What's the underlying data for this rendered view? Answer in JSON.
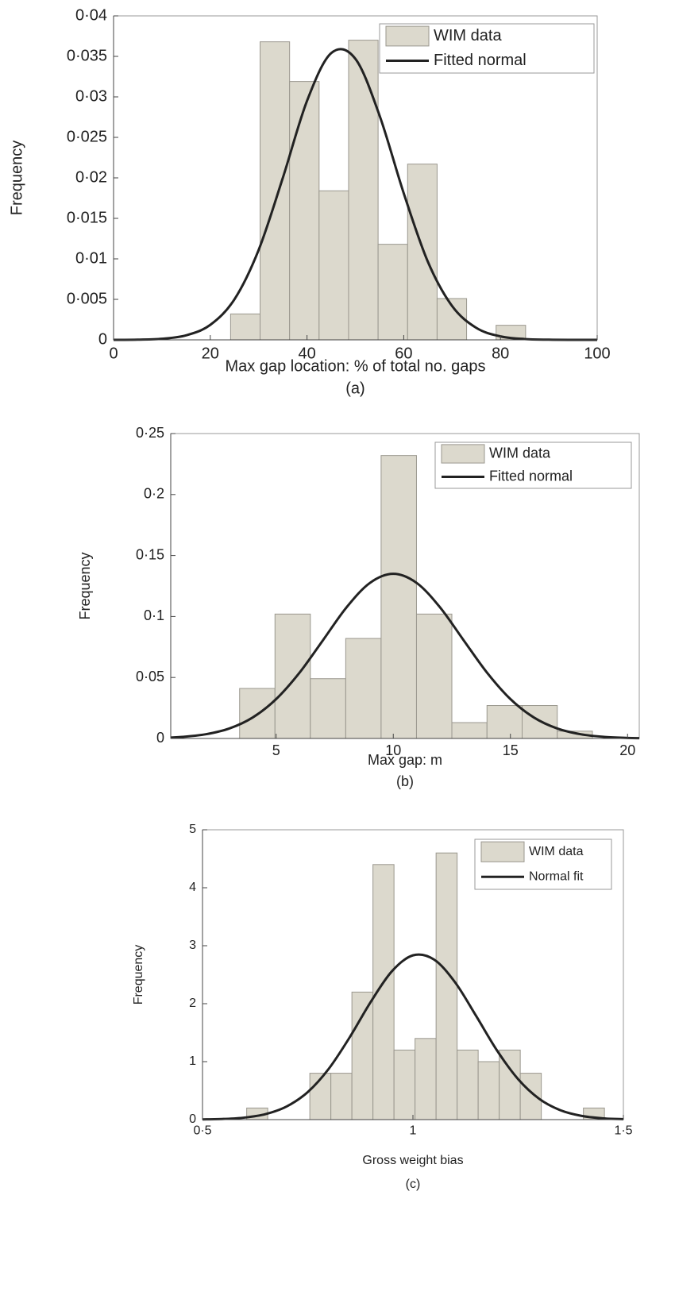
{
  "chart_data": [
    {
      "type": "histogram",
      "xlabel": "Max gap location: % of total no. gaps",
      "ylabel": "Frequency",
      "caption": "(a)",
      "bins": [
        24.2,
        30.3,
        36.4,
        42.5,
        48.6,
        54.7,
        60.8,
        66.9,
        73.0,
        79.1,
        85.2
      ],
      "series": [
        {
          "name": "WIM data",
          "color": "#dcd9cd",
          "values": [
            0.0032,
            0.0368,
            0.0319,
            0.0184,
            0.037,
            0.0118,
            0.0217,
            0.0051,
            0,
            0.0018
          ]
        },
        {
          "name": "Fitted normal",
          "color": "#222222",
          "type": "line",
          "x": [
            0,
            5,
            10,
            15,
            20,
            25,
            30,
            35,
            40,
            45,
            50,
            55,
            60,
            65,
            70,
            75,
            80,
            85,
            90,
            95,
            100
          ],
          "values": [
            0,
            3e-05,
            0.00014,
            0.00056,
            0.00185,
            0.00501,
            0.0111,
            0.02,
            0.0295,
            0.0354,
            0.0347,
            0.0277,
            0.0181,
            0.00963,
            0.00418,
            0.00148,
            0.00043,
            0.0001,
            2e-05,
            0,
            0
          ]
        }
      ],
      "xlim": [
        0,
        100
      ],
      "ylim": [
        0,
        0.04
      ],
      "xticks": [
        0,
        20,
        40,
        60,
        80,
        100
      ],
      "yticks": [
        0,
        {
          "value": 0.005,
          "label": "0·005"
        },
        {
          "value": 0.01,
          "label": "0·01"
        },
        {
          "value": 0.015,
          "label": "0·015"
        },
        {
          "value": 0.02,
          "label": "0·02"
        },
        {
          "value": 0.025,
          "label": "0·025"
        },
        {
          "value": 0.03,
          "label": "0·03"
        },
        {
          "value": 0.035,
          "label": "0·035"
        },
        {
          "value": 0.04,
          "label": "0·04"
        }
      ],
      "legend": "upper right"
    },
    {
      "type": "histogram",
      "xlabel": "Max gap: m",
      "ylabel": "Frequency",
      "caption": "(b)",
      "bins": [
        3.44,
        4.95,
        6.46,
        7.97,
        9.48,
        10.99,
        12.5,
        14.0,
        15.5,
        17.0,
        18.5
      ],
      "series": [
        {
          "name": "WIM data",
          "color": "#dcd9cd",
          "values": [
            0.041,
            0.102,
            0.049,
            0.082,
            0.232,
            0.102,
            0.013,
            0.027,
            0.027,
            0.006
          ]
        },
        {
          "name": "Fitted normal",
          "color": "#222222",
          "type": "line",
          "x": [
            0.5,
            1,
            2,
            3,
            4,
            5,
            6,
            7,
            8,
            9,
            10,
            11,
            12,
            13,
            14,
            15,
            16,
            17,
            18,
            19,
            20,
            20.5
          ],
          "values": [
            0.00077,
            0.0013,
            0.00345,
            0.00816,
            0.0172,
            0.0323,
            0.054,
            0.0806,
            0.1074,
            0.1275,
            0.135,
            0.1275,
            0.1074,
            0.0806,
            0.054,
            0.0323,
            0.0172,
            0.00816,
            0.00345,
            0.0013,
            0.00044,
            0.00024
          ]
        }
      ],
      "xlim": [
        0.5,
        20.5
      ],
      "ylim": [
        0,
        0.25
      ],
      "xticks": [
        5,
        10,
        15,
        20
      ],
      "yticks": [
        0,
        {
          "value": 0.05,
          "label": "0·05"
        },
        {
          "value": 0.1,
          "label": "0·1"
        },
        {
          "value": 0.15,
          "label": "0·15"
        },
        {
          "value": 0.2,
          "label": "0·2"
        },
        {
          "value": 0.25,
          "label": "0·25"
        }
      ],
      "legend": "upper right"
    },
    {
      "type": "histogram",
      "xlabel": "Gross weight bias",
      "ylabel": "Frequency",
      "caption": "(c)",
      "bins": [
        0.605,
        0.655,
        0.705,
        0.755,
        0.805,
        0.855,
        0.905,
        0.955,
        1.005,
        1.055,
        1.105,
        1.155,
        1.205,
        1.255,
        1.305,
        1.355,
        1.405,
        1.455
      ],
      "series": [
        {
          "name": "WIM data",
          "color": "#dcd9cd",
          "values": [
            0.2,
            0,
            0,
            0.8,
            0.8,
            2.2,
            4.4,
            1.2,
            1.4,
            4.6,
            1.2,
            1.0,
            1.2,
            0.8,
            0,
            0,
            0.2
          ]
        },
        {
          "name": "Normal fit",
          "color": "#222222",
          "type": "line",
          "x": [
            0.5,
            0.55,
            0.6,
            0.65,
            0.7,
            0.75,
            0.8,
            0.85,
            0.9,
            0.95,
            1.0,
            1.05,
            1.1,
            1.15,
            1.2,
            1.25,
            1.3,
            1.35,
            1.4,
            1.45,
            1.5
          ],
          "values": [
            0.0033,
            0.0115,
            0.0352,
            0.0952,
            0.227,
            0.475,
            0.877,
            1.423,
            2.034,
            2.559,
            2.834,
            2.762,
            2.37,
            1.79,
            1.19,
            0.697,
            0.359,
            0.163,
            0.065,
            0.0228,
            0.0071
          ]
        }
      ],
      "xlim": [
        0.5,
        1.5
      ],
      "ylim": [
        0,
        5
      ],
      "xticks": [
        {
          "value": 0.5,
          "label": "0·5"
        },
        1,
        {
          "value": 1.5,
          "label": "1·5"
        }
      ],
      "yticks": [
        0,
        1,
        2,
        3,
        4,
        5
      ],
      "legend": "upper right"
    }
  ]
}
